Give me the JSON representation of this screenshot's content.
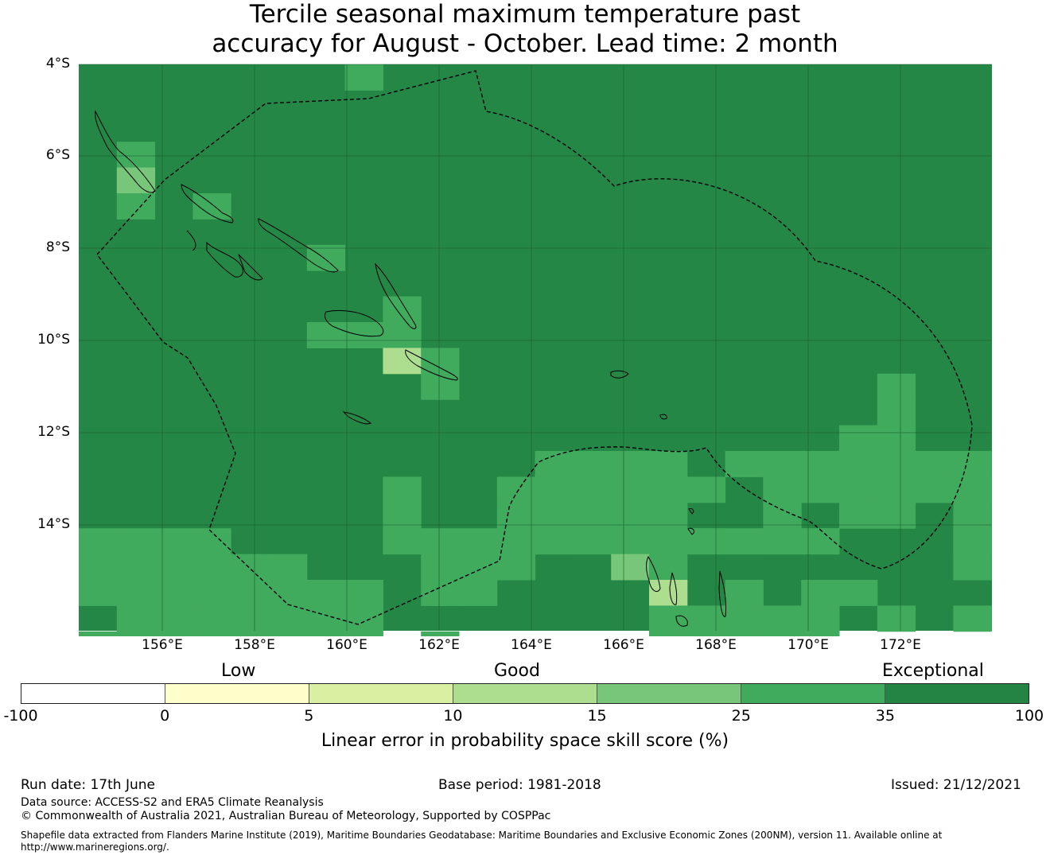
{
  "title": {
    "line1": "Tercile seasonal maximum temperature past",
    "line2": "accuracy for August - October. Lead time: 2 month"
  },
  "map": {
    "lat_ticks": [
      "4°S",
      "6°S",
      "8°S",
      "10°S",
      "12°S",
      "14°S"
    ],
    "lon_ticks": [
      "156°E",
      "158°E",
      "160°E",
      "162°E",
      "164°E",
      "166°E",
      "168°E",
      "170°E",
      "172°E"
    ],
    "background_color": "#258745",
    "grid": true,
    "boundary_style": "dashed",
    "skill_colors": {
      "exceptional_dark": "#258745",
      "exceptional": "#41ab5d",
      "good_high": "#78c679",
      "good_mid": "#addd8e",
      "low_high": "#d9f0a3",
      "low": "#ffffcc"
    }
  },
  "colorbar": {
    "category_labels": [
      "Low",
      "Good",
      "Exceptional"
    ],
    "ticks": [
      "-100",
      "0",
      "5",
      "10",
      "15",
      "25",
      "35",
      "100"
    ],
    "colors": [
      "#ffffff",
      "#ffffcc",
      "#d9f0a3",
      "#addd8e",
      "#78c679",
      "#41ab5d",
      "#238443"
    ],
    "label": "Linear error in probability space skill score (%)"
  },
  "footer": {
    "run_date": "Run date: 17th June",
    "base_period": "Base period: 1981-2018",
    "issued": "Issued: 21/12/2021",
    "data_source": "Data source: ACCESS-S2 and ERA5 Climate Reanalysis",
    "copyright": "© Commonwealth of Australia 2021, Australian Bureau of Meteorology, Supported by COSPPac",
    "shapefile": "Shapefile data extracted from Flanders Marine Institute (2019), Maritime Boundaries Geodatabase: Maritime Boundaries and Exclusive Economic Zones (200NM), version 11. Available online at http://www.marineregions.org/."
  }
}
